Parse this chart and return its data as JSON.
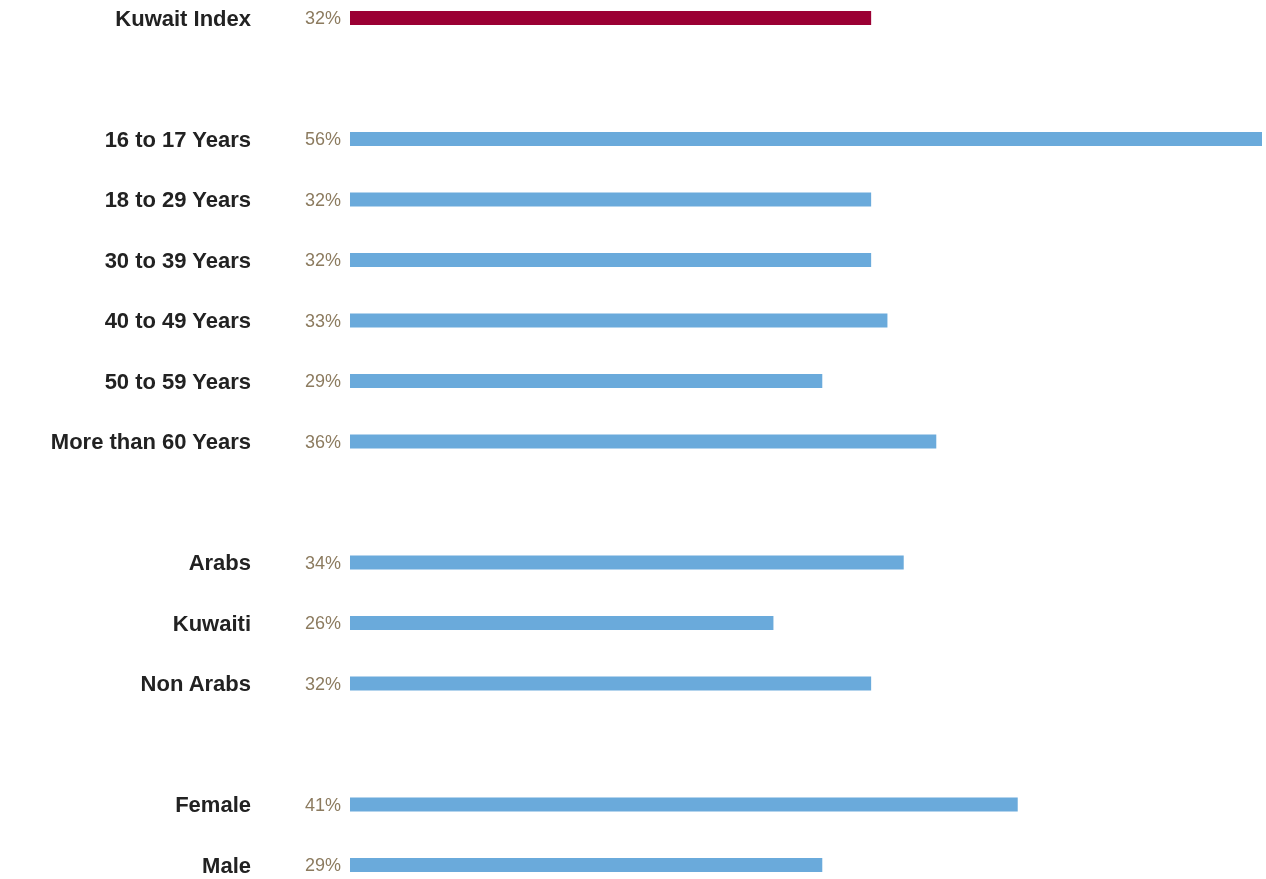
{
  "chart_data": {
    "type": "bar",
    "orientation": "horizontal",
    "categories": [
      "Kuwait Index",
      null,
      "16 to 17 Years",
      "18 to 29 Years",
      "30 to 39 Years",
      "40 to 49 Years",
      "50 to 59 Years",
      "More than 60 Years",
      null,
      "Arabs",
      "Kuwaiti",
      "Non Arabs",
      null,
      "Female",
      "Male"
    ],
    "values": [
      32,
      null,
      56,
      32,
      32,
      33,
      29,
      36,
      null,
      34,
      26,
      32,
      null,
      41,
      29
    ],
    "value_labels": [
      "32%",
      null,
      "56%",
      "32%",
      "32%",
      "33%",
      "29%",
      "36%",
      null,
      "34%",
      "26%",
      "32%",
      null,
      "41%",
      "29%"
    ],
    "colors": [
      "#9b0034",
      null,
      "#6aaadb",
      "#6aaadb",
      "#6aaadb",
      "#6aaadb",
      "#6aaadb",
      "#6aaadb",
      null,
      "#6aaadb",
      "#6aaadb",
      "#6aaadb",
      null,
      "#6aaadb",
      "#6aaadb"
    ]
  }
}
